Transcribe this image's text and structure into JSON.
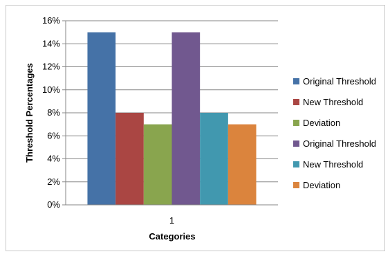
{
  "chart_data": {
    "type": "bar",
    "categories": [
      "1"
    ],
    "series": [
      {
        "name": "Original Threshold",
        "values": [
          0.15
        ],
        "color": "#4572A7"
      },
      {
        "name": "New Threshold",
        "values": [
          0.08
        ],
        "color": "#AA4643"
      },
      {
        "name": "Deviation",
        "values": [
          0.07
        ],
        "color": "#89A54E"
      },
      {
        "name": "Original Threshold",
        "values": [
          0.15
        ],
        "color": "#71588F"
      },
      {
        "name": "New Threshold",
        "values": [
          0.08
        ],
        "color": "#4198AF"
      },
      {
        "name": "Deviation",
        "values": [
          0.07
        ],
        "color": "#DB843D"
      }
    ],
    "xlabel": "Categories",
    "ylabel": "Threshold Percentages",
    "ylim": [
      0,
      0.16
    ],
    "yticks": [
      "0%",
      "2%",
      "4%",
      "6%",
      "8%",
      "10%",
      "12%",
      "14%",
      "16%"
    ],
    "grid": true,
    "legend_position": "right"
  }
}
